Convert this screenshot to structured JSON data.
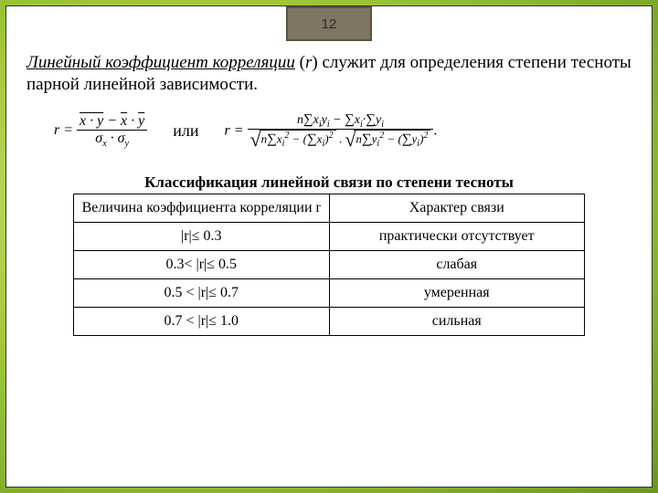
{
  "page_number": "12",
  "intro": {
    "term": "Линейный коэффициент корреляции",
    "symbol_open": " (",
    "symbol": "r",
    "symbol_close": ") ",
    "rest": "служит для определения степени тесноты парной линейной зависимости."
  },
  "or_word": "или",
  "table": {
    "caption": "Классификация линейной связи по степени тесноты",
    "header_left": "Величина коэффициента корреляции r",
    "header_right": "Характер связи",
    "rows": [
      {
        "left": "|r|≤ 0.3",
        "right": "практически отсутствует"
      },
      {
        "left": "0.3< |r|≤ 0.5",
        "right": "слабая"
      },
      {
        "left": "0.5 < |r|≤ 0.7",
        "right": "умеренная"
      },
      {
        "left": "0.7 < |r|≤ 1.0",
        "right": "сильная"
      }
    ]
  },
  "colors": {
    "badge_bg": "#7e7562",
    "badge_border": "#5a533f",
    "slide_bg": "#ffffff"
  }
}
